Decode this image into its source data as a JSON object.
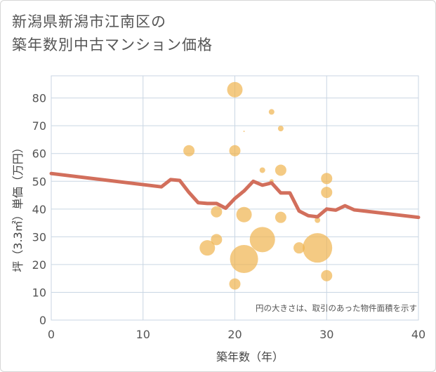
{
  "title_lines": [
    "新潟県新潟市江南区の",
    "築年数別中古マンション価格"
  ],
  "colors": {
    "bubble": "#f0b44e",
    "line": "#d26f5c",
    "grid": "#c9d6e3",
    "text": "#555555"
  },
  "chart_data": {
    "type": "scatter",
    "title": "新潟県新潟市江南区の築年数別中古マンション価格",
    "xlabel": "築年数（年）",
    "ylabel": "坪（3.3㎡）単価（万円）",
    "xlim": [
      0,
      40
    ],
    "ylim": [
      0,
      88
    ],
    "xticks": [
      0,
      10,
      20,
      30,
      40
    ],
    "yticks": [
      0,
      10,
      20,
      30,
      40,
      50,
      60,
      70,
      80
    ],
    "grid": true,
    "annotation": "円の大きさは、取引のあった物件面積を示す",
    "series": [
      {
        "kind": "bubble",
        "points": [
          {
            "x": 15,
            "y": 61,
            "size": 8
          },
          {
            "x": 17,
            "y": 26,
            "size": 11
          },
          {
            "x": 18,
            "y": 39,
            "size": 8
          },
          {
            "x": 18,
            "y": 29,
            "size": 8
          },
          {
            "x": 20,
            "y": 83,
            "size": 11
          },
          {
            "x": 20,
            "y": 61,
            "size": 8
          },
          {
            "x": 20,
            "y": 13,
            "size": 8
          },
          {
            "x": 21,
            "y": 38,
            "size": 11
          },
          {
            "x": 21,
            "y": 22,
            "size": 20
          },
          {
            "x": 21,
            "y": 68,
            "size": 1
          },
          {
            "x": 23,
            "y": 54,
            "size": 4
          },
          {
            "x": 23,
            "y": 29,
            "size": 18
          },
          {
            "x": 24,
            "y": 75,
            "size": 4
          },
          {
            "x": 24,
            "y": 50,
            "size": 3
          },
          {
            "x": 25,
            "y": 69,
            "size": 4
          },
          {
            "x": 25,
            "y": 54,
            "size": 8
          },
          {
            "x": 25,
            "y": 37,
            "size": 8
          },
          {
            "x": 27,
            "y": 26,
            "size": 8
          },
          {
            "x": 29,
            "y": 36,
            "size": 4
          },
          {
            "x": 29,
            "y": 26,
            "size": 21
          },
          {
            "x": 30,
            "y": 51,
            "size": 8
          },
          {
            "x": 30,
            "y": 46,
            "size": 8
          },
          {
            "x": 30,
            "y": 16,
            "size": 8
          }
        ]
      },
      {
        "kind": "line",
        "points": [
          {
            "x": 0,
            "y": 52.8
          },
          {
            "x": 12,
            "y": 48
          },
          {
            "x": 13,
            "y": 50.6
          },
          {
            "x": 14,
            "y": 50.3
          },
          {
            "x": 15,
            "y": 46
          },
          {
            "x": 16,
            "y": 42.3
          },
          {
            "x": 17,
            "y": 42
          },
          {
            "x": 18,
            "y": 42
          },
          {
            "x": 19,
            "y": 40.3
          },
          {
            "x": 20,
            "y": 43.8
          },
          {
            "x": 21,
            "y": 46.5
          },
          {
            "x": 22,
            "y": 50
          },
          {
            "x": 23,
            "y": 48.6
          },
          {
            "x": 24,
            "y": 49.4
          },
          {
            "x": 25,
            "y": 45.8
          },
          {
            "x": 26,
            "y": 45.8
          },
          {
            "x": 27,
            "y": 39.3
          },
          {
            "x": 28,
            "y": 37.6
          },
          {
            "x": 29,
            "y": 37.2
          },
          {
            "x": 30,
            "y": 40
          },
          {
            "x": 31,
            "y": 39.6
          },
          {
            "x": 32,
            "y": 41.2
          },
          {
            "x": 33,
            "y": 39.7
          },
          {
            "x": 40,
            "y": 37
          }
        ]
      }
    ]
  }
}
